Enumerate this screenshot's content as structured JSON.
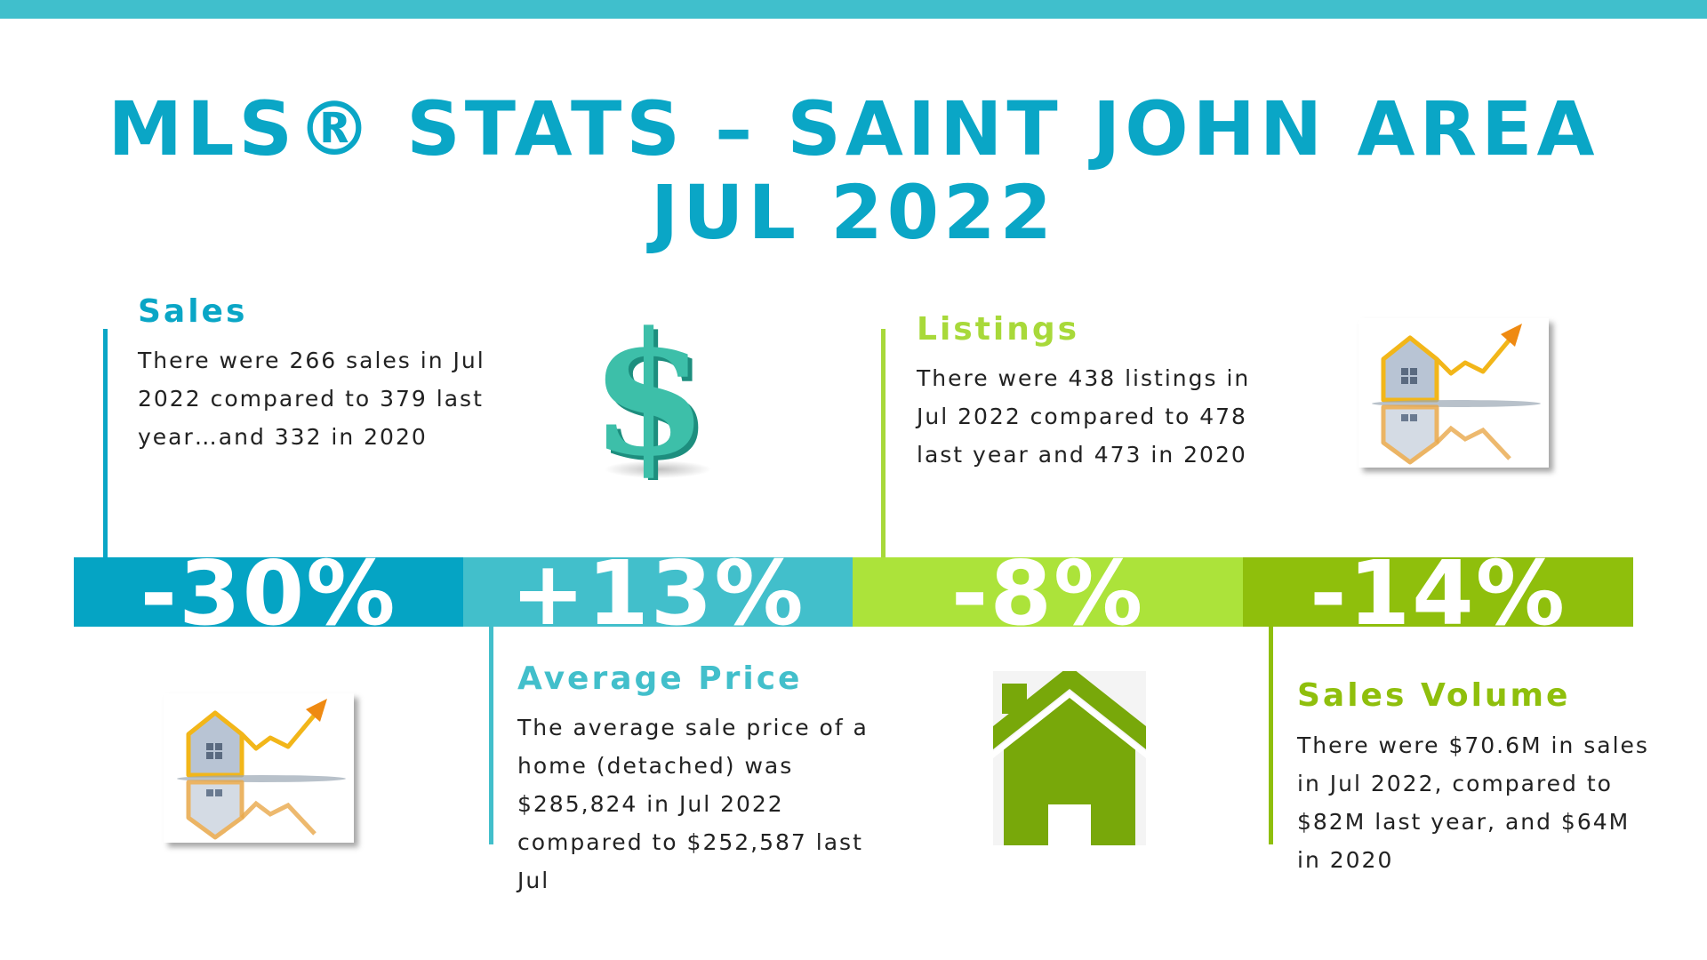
{
  "title": {
    "line1": "MLS® STATS – SAINT JOHN AREA",
    "line2": "JUL 2022"
  },
  "sales": {
    "heading": "Sales",
    "text": "There were 266 sales in Jul 2022 compared to 379 last year…and 332 in 2020"
  },
  "listings": {
    "heading": "Listings",
    "text": "There were 438 listings in Jul 2022 compared to 478 last year and 473 in 2020"
  },
  "average_price": {
    "heading": "Average Price",
    "text": "The average sale price of a home (detached) was $285,824 in Jul 2022 compared to $252,587 last Jul"
  },
  "sales_volume": {
    "heading": "Sales Volume",
    "text": "There were $70.6M in sales in Jul 2022, compared to $82M last year, and $64M in 2020"
  },
  "band": [
    {
      "label": "-30%",
      "color": "#05a4c4"
    },
    {
      "label": "+13%",
      "color": "#42bfcb"
    },
    {
      "label": "-8%",
      "color": "#ace33a"
    },
    {
      "label": "-14%",
      "color": "#8fbf0c"
    }
  ],
  "colors": {
    "blue": "#0aa6c6",
    "teal": "#42bfcb",
    "lime": "#a8d93a",
    "green": "#8fbf0c",
    "house_green": "#78a80a",
    "dollar": "#3dbfa9"
  },
  "icons": [
    "dollar-sign-icon",
    "house-chart-icon",
    "house-icon"
  ]
}
